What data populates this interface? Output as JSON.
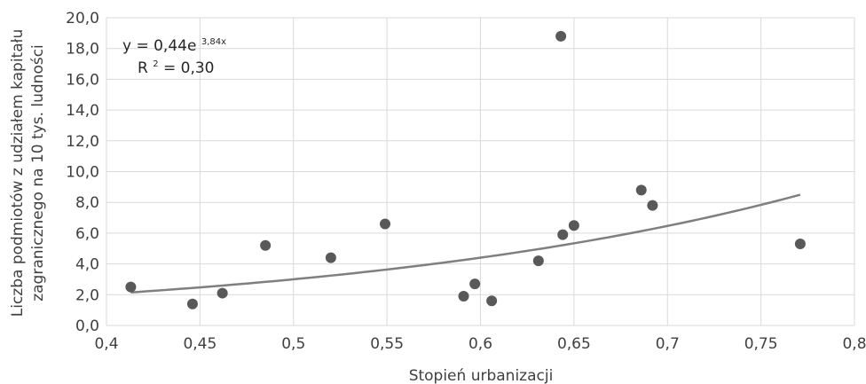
{
  "chart_data": {
    "type": "scatter",
    "xlabel": "Stopień urbanizacji",
    "ylabel_line1": "Liczba podmiotów z udziałem kapitału",
    "ylabel_line2": "zagranicznego na 10 tys. ludności",
    "xlim": [
      0.4,
      0.8
    ],
    "ylim": [
      0,
      20
    ],
    "x_ticks": [
      "0,4",
      "0,45",
      "0,5",
      "0,55",
      "0,6",
      "0,65",
      "0,7",
      "0,75",
      "0,8"
    ],
    "y_ticks": [
      "0,0",
      "2,0",
      "4,0",
      "6,0",
      "8,0",
      "10,0",
      "12,0",
      "14,0",
      "16,0",
      "18,0",
      "20,0"
    ],
    "grid": "vertical and horizontal",
    "points": [
      {
        "x": 0.413,
        "y": 2.5
      },
      {
        "x": 0.446,
        "y": 1.4
      },
      {
        "x": 0.462,
        "y": 2.1
      },
      {
        "x": 0.485,
        "y": 5.2
      },
      {
        "x": 0.52,
        "y": 4.4
      },
      {
        "x": 0.549,
        "y": 6.6
      },
      {
        "x": 0.591,
        "y": 1.9
      },
      {
        "x": 0.597,
        "y": 2.7
      },
      {
        "x": 0.606,
        "y": 1.6
      },
      {
        "x": 0.631,
        "y": 4.2
      },
      {
        "x": 0.643,
        "y": 18.8
      },
      {
        "x": 0.644,
        "y": 5.9
      },
      {
        "x": 0.65,
        "y": 6.5
      },
      {
        "x": 0.686,
        "y": 8.8
      },
      {
        "x": 0.692,
        "y": 7.8
      },
      {
        "x": 0.771,
        "y": 5.3
      }
    ],
    "trendline": {
      "type": "exponential",
      "a": 0.44,
      "b": 3.84,
      "x_range": [
        0.413,
        0.771
      ],
      "equation_prefix": "y = 0,44e",
      "equation_exponent": "3,84x",
      "r2_prefix": "R",
      "r2_sup": "2",
      "r2_value": " = 0,30"
    },
    "colors": {
      "points": "#595959",
      "trendline": "#7f7f7f",
      "grid": "#d9d9d9",
      "text": "#404040"
    }
  }
}
